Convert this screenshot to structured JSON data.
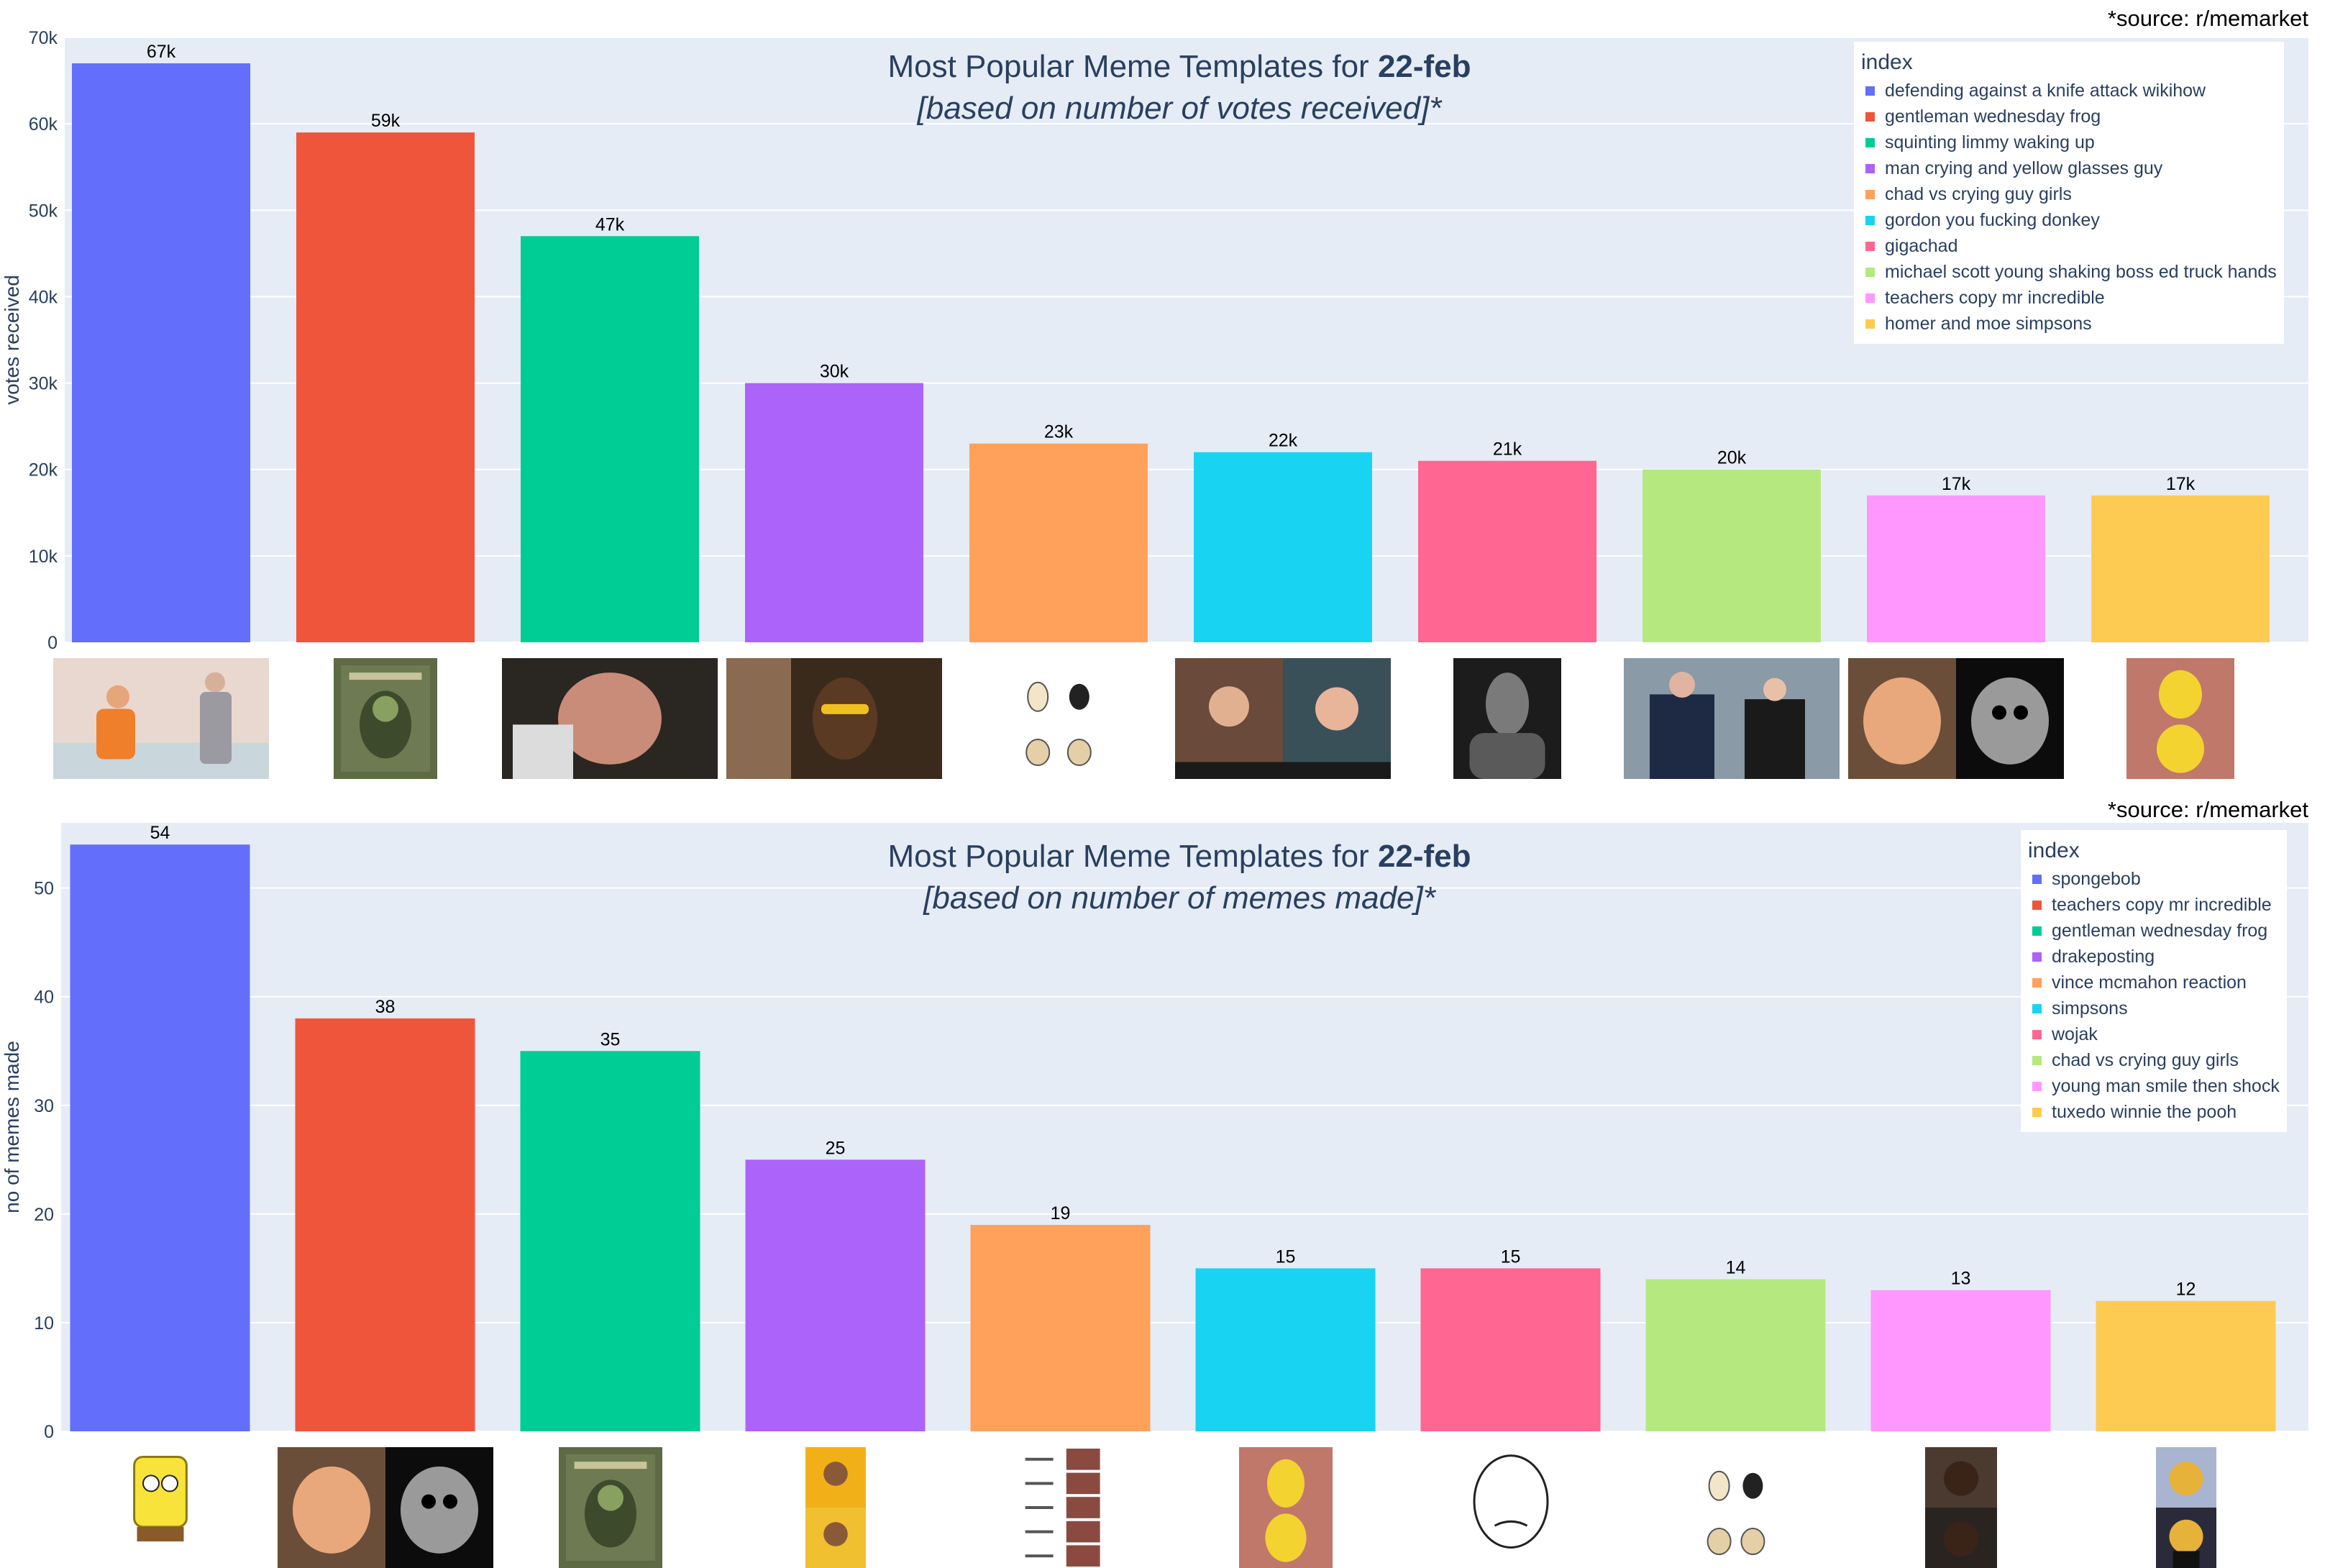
{
  "panels": [
    {
      "source": "*source: r/memarket",
      "title_prefix": "Most Popular Meme Templates for ",
      "title_bold": "22-feb",
      "subtitle": "[based on number of votes received]*",
      "legend_title": "index",
      "thumb_icons": [
        "knife-attack-icon",
        "frog-icon",
        "man-face-icon",
        "crying-guy-icon",
        "chad-girls-icon",
        "gordon-donkey-icon",
        "gigachad-icon",
        "handshake-icon",
        "mr-incredible-icon",
        "simpsons-icon"
      ]
    },
    {
      "source": "*source: r/memarket",
      "title_prefix": "Most Popular Meme Templates for ",
      "title_bold": "22-feb",
      "subtitle": "[based on number of memes made]*",
      "legend_title": "index",
      "thumb_icons": [
        "spongebob-icon",
        "mr-incredible-icon",
        "frog-icon",
        "drake-icon",
        "vince-mcmahon-icon",
        "simpsons-icon",
        "wojak-icon",
        "chad-girls-icon",
        "smile-shock-icon",
        "tuxedo-pooh-icon"
      ]
    }
  ],
  "chart_data": [
    {
      "type": "bar",
      "title": "Most Popular Meme Templates for 22-feb",
      "subtitle": "[based on number of votes received]*",
      "xlabel": "",
      "ylabel": "votes received",
      "ylim": [
        0,
        70000
      ],
      "yticks": [
        0,
        10000,
        20000,
        30000,
        40000,
        50000,
        60000,
        70000
      ],
      "ytick_labels": [
        "0",
        "10k",
        "20k",
        "30k",
        "40k",
        "50k",
        "60k",
        "70k"
      ],
      "grid": true,
      "legend_position": "top-right",
      "categories": [
        "defending against a knife attack wikihow",
        "gentleman wednesday frog",
        "squinting limmy waking up",
        "man crying and yellow glasses guy",
        "chad vs crying guy girls",
        "gordon you fucking donkey",
        "gigachad",
        "michael scott young shaking boss ed truck hands",
        "teachers copy mr incredible",
        "homer and moe simpsons"
      ],
      "values": [
        67000,
        59000,
        47000,
        30000,
        23000,
        22000,
        21000,
        20000,
        17000,
        17000
      ],
      "labels": [
        "67k",
        "59k",
        "47k",
        "30k",
        "23k",
        "22k",
        "21k",
        "20k",
        "17k",
        "17k"
      ],
      "colors": [
        "#636efa",
        "#ef553b",
        "#00cc96",
        "#ab63fa",
        "#ffa15a",
        "#19d3f3",
        "#ff6692",
        "#b6e880",
        "#ff97ff",
        "#fecb52"
      ]
    },
    {
      "type": "bar",
      "title": "Most Popular Meme Templates for 22-feb",
      "subtitle": "[based on number of memes made]*",
      "xlabel": "",
      "ylabel": "no of memes made",
      "ylim": [
        0,
        56
      ],
      "yticks": [
        0,
        10,
        20,
        30,
        40,
        50
      ],
      "ytick_labels": [
        "0",
        "10",
        "20",
        "30",
        "40",
        "50"
      ],
      "grid": true,
      "legend_position": "top-right",
      "categories": [
        "spongebob",
        "teachers copy mr incredible",
        "gentleman wednesday frog",
        "drakeposting",
        "vince mcmahon reaction",
        "simpsons",
        "wojak",
        "chad vs crying guy girls",
        "young man smile then shock",
        "tuxedo winnie the pooh"
      ],
      "values": [
        54,
        38,
        35,
        25,
        19,
        15,
        15,
        14,
        13,
        12
      ],
      "labels": [
        "54",
        "38",
        "35",
        "25",
        "19",
        "15",
        "15",
        "14",
        "13",
        "12"
      ],
      "colors": [
        "#636efa",
        "#ef553b",
        "#00cc96",
        "#ab63fa",
        "#ffa15a",
        "#19d3f3",
        "#ff6692",
        "#b6e880",
        "#ff97ff",
        "#fecb52"
      ]
    }
  ]
}
